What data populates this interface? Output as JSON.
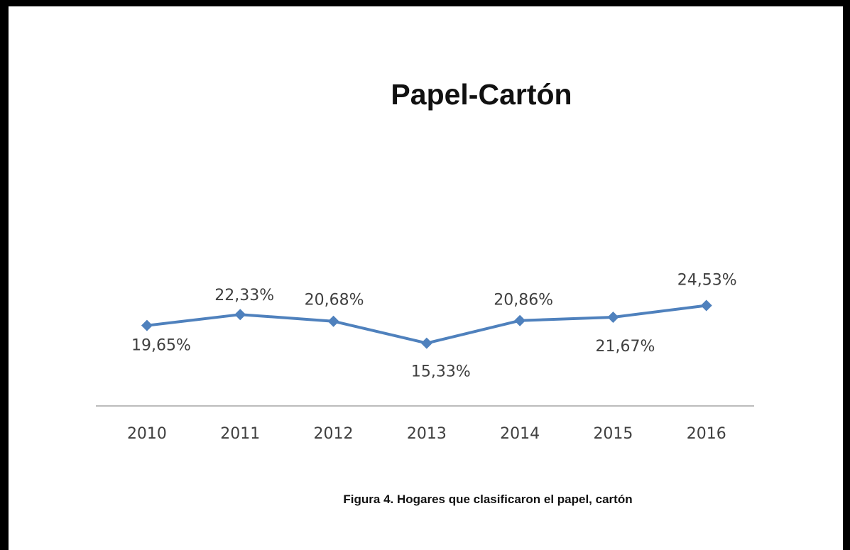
{
  "chart_data": {
    "type": "line",
    "title": "Papel-Cartón",
    "xlabel": "",
    "ylabel": "",
    "categories": [
      "2010",
      "2011",
      "2012",
      "2013",
      "2014",
      "2015",
      "2016"
    ],
    "series": [
      {
        "values": [
          19.65,
          22.33,
          20.68,
          15.33,
          20.86,
          21.67,
          24.53
        ],
        "data_labels": [
          "19,65%",
          "22,33%",
          "20,68%",
          "15,33%",
          "20,86%",
          "21,67%",
          "24,53%"
        ]
      }
    ],
    "ylim": [
      0,
      60
    ],
    "y_axis_visible": false,
    "grid": false,
    "legend": "none",
    "marker": "diamond",
    "colors": {
      "series": "#4f81bd",
      "axis": "#a6a6a6"
    }
  },
  "caption": "Figura 4. Hogares que clasificaron el papel, cartón"
}
